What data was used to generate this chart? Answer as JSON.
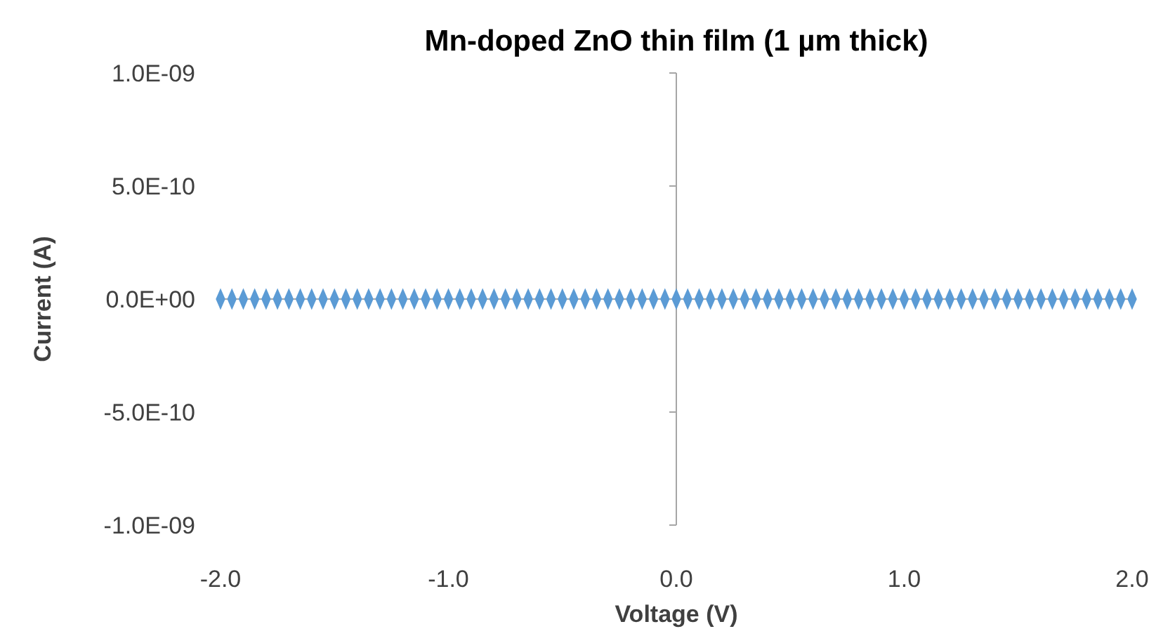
{
  "chart_data": {
    "type": "scatter",
    "title": "Mn-doped ZnO thin film (1 µm thick)",
    "xlabel": "Voltage (V)",
    "ylabel": "Current (A)",
    "x": [
      -2.0,
      -1.95,
      -1.9,
      -1.85,
      -1.8,
      -1.75,
      -1.7,
      -1.65,
      -1.6,
      -1.55,
      -1.5,
      -1.45,
      -1.4,
      -1.35,
      -1.3,
      -1.25,
      -1.2,
      -1.15,
      -1.1,
      -1.05,
      -1.0,
      -0.95,
      -0.9,
      -0.85,
      -0.8,
      -0.75,
      -0.7,
      -0.65,
      -0.6,
      -0.55,
      -0.5,
      -0.45,
      -0.4,
      -0.35,
      -0.3,
      -0.25,
      -0.2,
      -0.15,
      -0.1,
      -0.05,
      0.0,
      0.05,
      0.1,
      0.15,
      0.2,
      0.25,
      0.3,
      0.35,
      0.4,
      0.45,
      0.5,
      0.55,
      0.6,
      0.65,
      0.7,
      0.75,
      0.8,
      0.85,
      0.9,
      0.95,
      1.0,
      1.05,
      1.1,
      1.15,
      1.2,
      1.25,
      1.3,
      1.35,
      1.4,
      1.45,
      1.5,
      1.55,
      1.6,
      1.65,
      1.7,
      1.75,
      1.8,
      1.85,
      1.9,
      1.95,
      2.0
    ],
    "series": [
      {
        "color": "#5b9bd5",
        "values": [
          0,
          0,
          0,
          0,
          0,
          0,
          0,
          0,
          0,
          0,
          0,
          0,
          0,
          0,
          0,
          0,
          0,
          0,
          0,
          0,
          0,
          0,
          0,
          0,
          0,
          0,
          0,
          0,
          0,
          0,
          0,
          0,
          0,
          0,
          0,
          0,
          0,
          0,
          0,
          0,
          0,
          0,
          0,
          0,
          0,
          0,
          0,
          0,
          0,
          0,
          0,
          0,
          0,
          0,
          0,
          0,
          0,
          0,
          0,
          0,
          0,
          0,
          0,
          0,
          0,
          0,
          0,
          0,
          0,
          0,
          0,
          0,
          0,
          0,
          0,
          0,
          0,
          0,
          0,
          0,
          0
        ]
      }
    ],
    "xlim": [
      -2,
      2
    ],
    "xticks": [
      {
        "value": -2,
        "label": "-2.0"
      },
      {
        "value": -1,
        "label": "-1.0"
      },
      {
        "value": 0,
        "label": "0.0"
      },
      {
        "value": 1,
        "label": "1.0"
      },
      {
        "value": 2,
        "label": "2.0"
      }
    ],
    "ylim": [
      -1e-09,
      1e-09
    ],
    "yticks": [
      {
        "value": -1e-09,
        "label": "-1.0E-09"
      },
      {
        "value": -5e-10,
        "label": "-5.0E-10"
      },
      {
        "value": 0,
        "label": "0.0E+00"
      },
      {
        "value": 5e-10,
        "label": "5.0E-10"
      },
      {
        "value": 1e-09,
        "label": "1.0E-09"
      }
    ],
    "marker": "diamond"
  }
}
